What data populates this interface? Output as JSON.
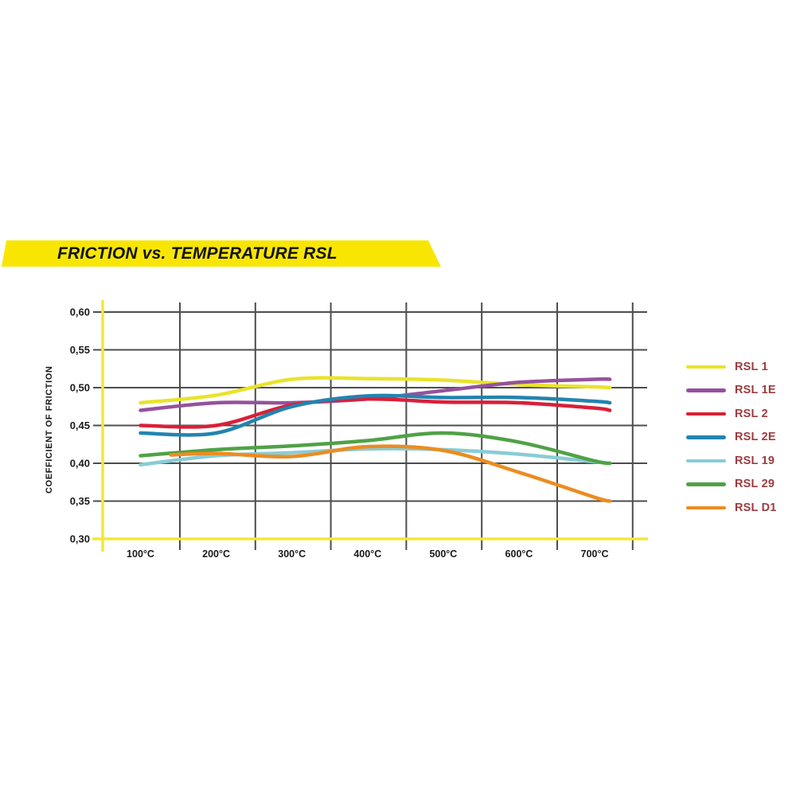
{
  "banner": {
    "title": "FRICTION vs. TEMPERATURE RSL",
    "background_color": "#f8e602",
    "text_color": "#121212"
  },
  "chart_data": {
    "type": "line",
    "title": "FRICTION vs. TEMPERATURE RSL",
    "ylabel": "COEFFICIENT OF FRICTION",
    "y_axis": {
      "min": 0.3,
      "max": 0.6,
      "tick_step": 0.05,
      "tick_labels": [
        "0,60",
        "0,55",
        "0,50",
        "0,45",
        "0,40",
        "0,35",
        "0,30"
      ],
      "tick_values": [
        0.6,
        0.55,
        0.5,
        0.45,
        0.4,
        0.35,
        0.3
      ]
    },
    "x_axis": {
      "unit": "°C",
      "tick_labels": [
        "100°C",
        "200°C",
        "300°C",
        "400°C",
        "500°C",
        "600°C",
        "700°C"
      ],
      "tick_values": [
        100,
        200,
        300,
        400,
        500,
        600,
        700
      ]
    },
    "grid": true,
    "legend_position": "right",
    "colors": {
      "axis_color": "#f0ea35",
      "grid_color": "#4d4d4d",
      "tick_text_color": "#1a1a1a",
      "legend_text_color": "#9c3c40"
    },
    "series": [
      {
        "name": "RSL 1",
        "color": "#e9e32b",
        "points": [
          [
            100,
            0.48
          ],
          [
            200,
            0.49
          ],
          [
            300,
            0.511
          ],
          [
            400,
            0.512
          ],
          [
            500,
            0.51
          ],
          [
            600,
            0.504
          ],
          [
            700,
            0.501
          ],
          [
            720,
            0.5
          ]
        ]
      },
      {
        "name": "RSL 1E",
        "color": "#95529c",
        "points": [
          [
            100,
            0.47
          ],
          [
            200,
            0.48
          ],
          [
            300,
            0.48
          ],
          [
            400,
            0.485
          ],
          [
            500,
            0.496
          ],
          [
            600,
            0.507
          ],
          [
            700,
            0.511
          ],
          [
            720,
            0.511
          ]
        ]
      },
      {
        "name": "RSL 2",
        "color": "#d92038",
        "points": [
          [
            100,
            0.45
          ],
          [
            200,
            0.45
          ],
          [
            300,
            0.477
          ],
          [
            400,
            0.485
          ],
          [
            500,
            0.481
          ],
          [
            600,
            0.48
          ],
          [
            700,
            0.473
          ],
          [
            720,
            0.47
          ]
        ]
      },
      {
        "name": "RSL 2E",
        "color": "#2384af",
        "points": [
          [
            100,
            0.44
          ],
          [
            200,
            0.44
          ],
          [
            300,
            0.475
          ],
          [
            400,
            0.489
          ],
          [
            500,
            0.487
          ],
          [
            600,
            0.487
          ],
          [
            700,
            0.482
          ],
          [
            720,
            0.48
          ]
        ]
      },
      {
        "name": "RSL 19",
        "color": "#88cdd6",
        "points": [
          [
            100,
            0.398
          ],
          [
            200,
            0.41
          ],
          [
            300,
            0.414
          ],
          [
            400,
            0.419
          ],
          [
            500,
            0.418
          ],
          [
            600,
            0.412
          ],
          [
            700,
            0.402
          ],
          [
            720,
            0.4
          ]
        ]
      },
      {
        "name": "RSL 29",
        "color": "#4fa246",
        "points": [
          [
            100,
            0.41
          ],
          [
            200,
            0.418
          ],
          [
            300,
            0.423
          ],
          [
            400,
            0.43
          ],
          [
            500,
            0.44
          ],
          [
            600,
            0.428
          ],
          [
            700,
            0.403
          ],
          [
            720,
            0.4
          ]
        ]
      },
      {
        "name": "RSL D1",
        "color": "#ec8c21",
        "points": [
          [
            140,
            0.411
          ],
          [
            200,
            0.413
          ],
          [
            300,
            0.409
          ],
          [
            400,
            0.422
          ],
          [
            500,
            0.417
          ],
          [
            600,
            0.388
          ],
          [
            700,
            0.355
          ],
          [
            720,
            0.35
          ]
        ]
      }
    ]
  }
}
